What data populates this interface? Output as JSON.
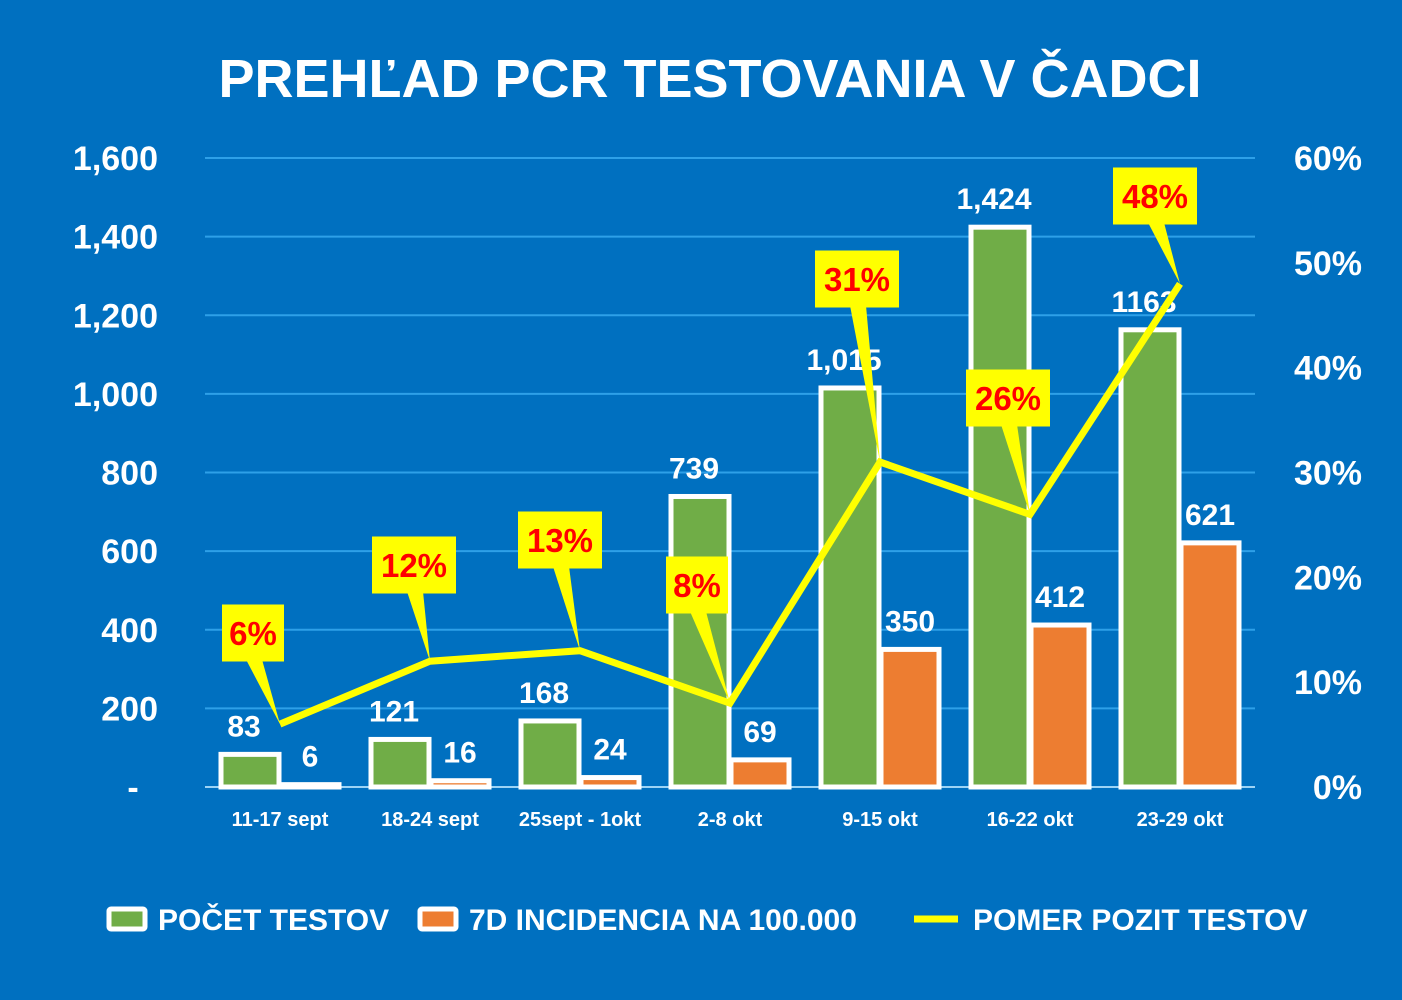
{
  "colors": {
    "background": "#0070c0",
    "green": "#70ad47",
    "orange": "#ed7d31",
    "line": "#ffff00",
    "callout_text": "#ff0000",
    "grid": "#2ea0e8",
    "text": "#ffffff"
  },
  "chart_data": {
    "type": "bar",
    "title": "PREHĽAD PCR TESTOVANIA V ČADCI",
    "categories": [
      "11-17 sept",
      "18-24 sept",
      "25sept - 1okt",
      "2-8 okt",
      "9-15 okt",
      "16-22 okt",
      "23-29 okt"
    ],
    "series": [
      {
        "name": "POČET TESTOV",
        "type": "bar",
        "axis": "left",
        "values": [
          83,
          121,
          168,
          739,
          1015,
          1424,
          1163
        ],
        "labels": [
          "83",
          "121",
          "168",
          "739",
          "1,015",
          "1,424",
          "1163"
        ]
      },
      {
        "name": "7D INCIDENCIA NA 100.000",
        "type": "bar",
        "axis": "left",
        "values": [
          6,
          16,
          24,
          69,
          350,
          412,
          621
        ],
        "labels": [
          "6",
          "16",
          "24",
          "69",
          "350",
          "412",
          "621"
        ]
      },
      {
        "name": "POMER POZIT TESTOV",
        "type": "line",
        "axis": "right",
        "values": [
          6,
          12,
          13,
          8,
          31,
          26,
          48
        ],
        "labels": [
          "6%",
          "12%",
          "13%",
          "8%",
          "31%",
          "26%",
          "48%"
        ]
      }
    ],
    "y_left": {
      "ylim": [
        0,
        1600
      ],
      "ticks": [
        "-",
        "200",
        "400",
        "600",
        "800",
        "1,000",
        "1,200",
        "1,400",
        "1,600"
      ]
    },
    "y_right": {
      "ylim": [
        0,
        60
      ],
      "ticks": [
        "0%",
        "10%",
        "20%",
        "30%",
        "40%",
        "50%",
        "60%"
      ]
    },
    "grid": true,
    "legend": "bottom"
  }
}
